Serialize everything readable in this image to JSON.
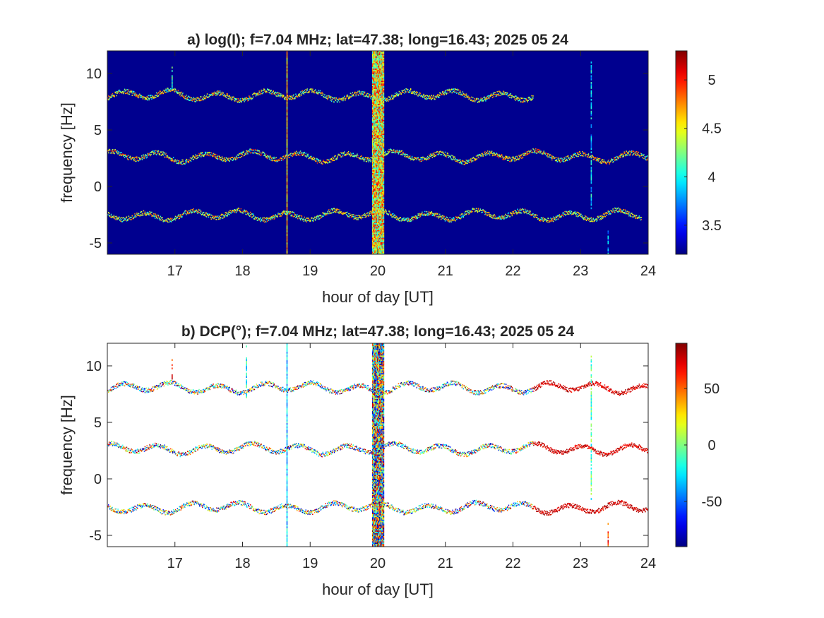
{
  "chart_data": [
    {
      "type": "heatmap",
      "id": "a",
      "title": "a) log(I); f=7.04 MHz;  lat=47.38; long=16.43; 2025 05 24",
      "xlabel": "hour of day [UT]",
      "ylabel": "frequency [Hz]",
      "xlim": [
        16,
        24
      ],
      "ylim": [
        -6,
        12
      ],
      "xticks": [
        17,
        18,
        19,
        20,
        21,
        22,
        23,
        24
      ],
      "yticks": [
        -5,
        0,
        5,
        10
      ],
      "background": "#00008f",
      "colormap": "jet",
      "colorbar": {
        "limits": [
          3.2,
          5.3
        ],
        "ticks": [
          3.5,
          4,
          4.5,
          5
        ],
        "tick_labels": [
          "3.5",
          "4",
          "4.5",
          "5"
        ]
      },
      "traces": [
        {
          "center_hz": 8.1,
          "amplitude_hz": 0.35,
          "x_start": 16.0,
          "x_end": 22.3,
          "peak_value": 4.4
        },
        {
          "center_hz": 2.7,
          "amplitude_hz": 0.35,
          "x_start": 16.0,
          "x_end": 24.0,
          "peak_value": 4.5
        },
        {
          "center_hz": -2.5,
          "amplitude_hz": 0.35,
          "x_start": 16.0,
          "x_end": 23.9,
          "peak_value": 4.4
        }
      ],
      "vertical_features": [
        {
          "x": 18.65,
          "y_range": [
            -6,
            12
          ],
          "value": 4.6,
          "kind": "thin-line"
        },
        {
          "x": 20.0,
          "y_range": [
            -6,
            12
          ],
          "value": 4.3,
          "kind": "broadband-burst",
          "width_h": 0.17
        },
        {
          "x": 16.95,
          "y_range": [
            8.5,
            10.5
          ],
          "value": 4.1,
          "kind": "short-line"
        },
        {
          "x": 23.15,
          "y_range": [
            -2,
            11
          ],
          "value": 3.9,
          "kind": "short-line"
        },
        {
          "x": 23.4,
          "y_range": [
            -6,
            -4
          ],
          "value": 3.8,
          "kind": "short-line"
        }
      ]
    },
    {
      "type": "heatmap",
      "id": "b",
      "title": "b) DCP(°); f=7.04 MHz;  lat=47.38; long=16.43; 2025 05 24",
      "xlabel": "hour of day [UT]",
      "ylabel": "frequency [Hz]",
      "xlim": [
        16,
        24
      ],
      "ylim": [
        -6,
        12
      ],
      "xticks": [
        17,
        18,
        19,
        20,
        21,
        22,
        23,
        24
      ],
      "yticks": [
        -5,
        0,
        5,
        10
      ],
      "background": "#ffffff",
      "colormap": "jet",
      "colorbar": {
        "limits": [
          -90,
          90
        ],
        "ticks": [
          -50,
          0,
          50
        ],
        "tick_labels": [
          "-50",
          "0",
          "50"
        ]
      },
      "traces": [
        {
          "center_hz": 8.1,
          "amplitude_hz": 0.35,
          "x_start": 16.0,
          "x_end": 24.0,
          "red_after_x": 22.3
        },
        {
          "center_hz": 2.7,
          "amplitude_hz": 0.35,
          "x_start": 16.0,
          "x_end": 24.0,
          "red_after_x": 22.3
        },
        {
          "center_hz": -2.5,
          "amplitude_hz": 0.35,
          "x_start": 16.0,
          "x_end": 24.0,
          "red_after_x": 22.3
        }
      ],
      "vertical_features": [
        {
          "x": 18.65,
          "y_range": [
            -6,
            12
          ],
          "value": -30,
          "kind": "thin-line"
        },
        {
          "x": 20.0,
          "y_range": [
            -6,
            12
          ],
          "value": 40,
          "kind": "broadband-burst",
          "width_h": 0.17
        },
        {
          "x": 16.95,
          "y_range": [
            8.5,
            10.5
          ],
          "value": 60,
          "kind": "short-line"
        },
        {
          "x": 18.05,
          "y_range": [
            7,
            12
          ],
          "value": -20,
          "kind": "short-line"
        },
        {
          "x": 23.15,
          "y_range": [
            -2,
            11
          ],
          "value": -10,
          "kind": "short-line"
        },
        {
          "x": 23.4,
          "y_range": [
            -6,
            -4
          ],
          "value": 60,
          "kind": "short-line"
        }
      ]
    }
  ]
}
